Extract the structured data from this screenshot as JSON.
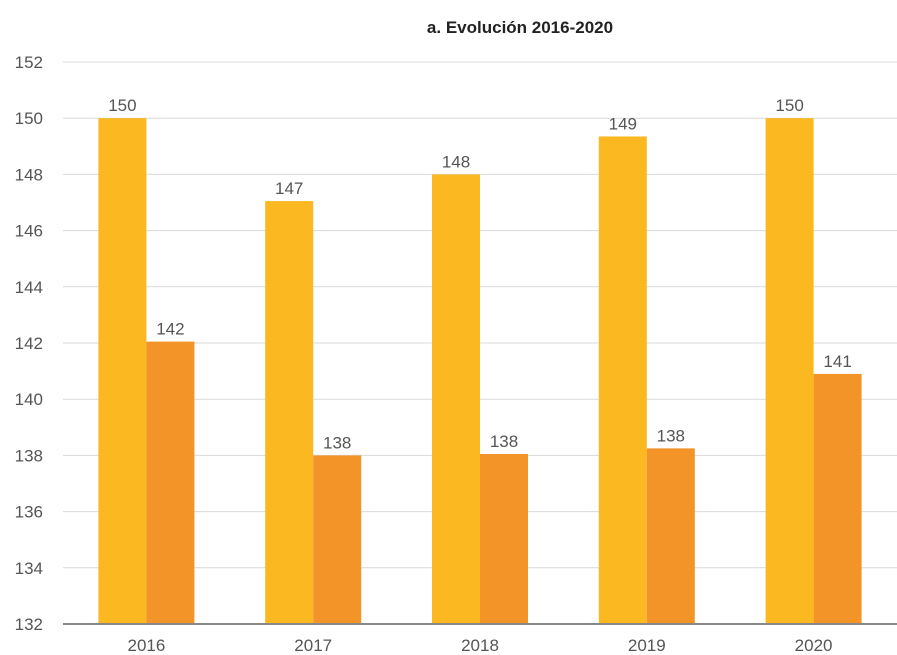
{
  "chart_data": {
    "type": "bar",
    "title": "a. Evolución 2016-2020",
    "categories": [
      "2016",
      "2017",
      "2018",
      "2019",
      "2020"
    ],
    "series": [
      {
        "values": [
          150,
          147.05,
          148,
          149.35,
          150
        ],
        "labels": [
          "150",
          "147",
          "148",
          "149",
          "150"
        ],
        "color": "#FBB820"
      },
      {
        "values": [
          142.05,
          138,
          138.05,
          138.25,
          140.9
        ],
        "labels": [
          "142",
          "138",
          "138",
          "138",
          "141"
        ],
        "color": "#F29427"
      }
    ],
    "yticks": [
      "152",
      "150",
      "148",
      "146",
      "144",
      "142",
      "140",
      "138",
      "136",
      "134",
      "132"
    ],
    "ylim": [
      132,
      152
    ],
    "grid": true,
    "xlabel": "",
    "ylabel": ""
  }
}
